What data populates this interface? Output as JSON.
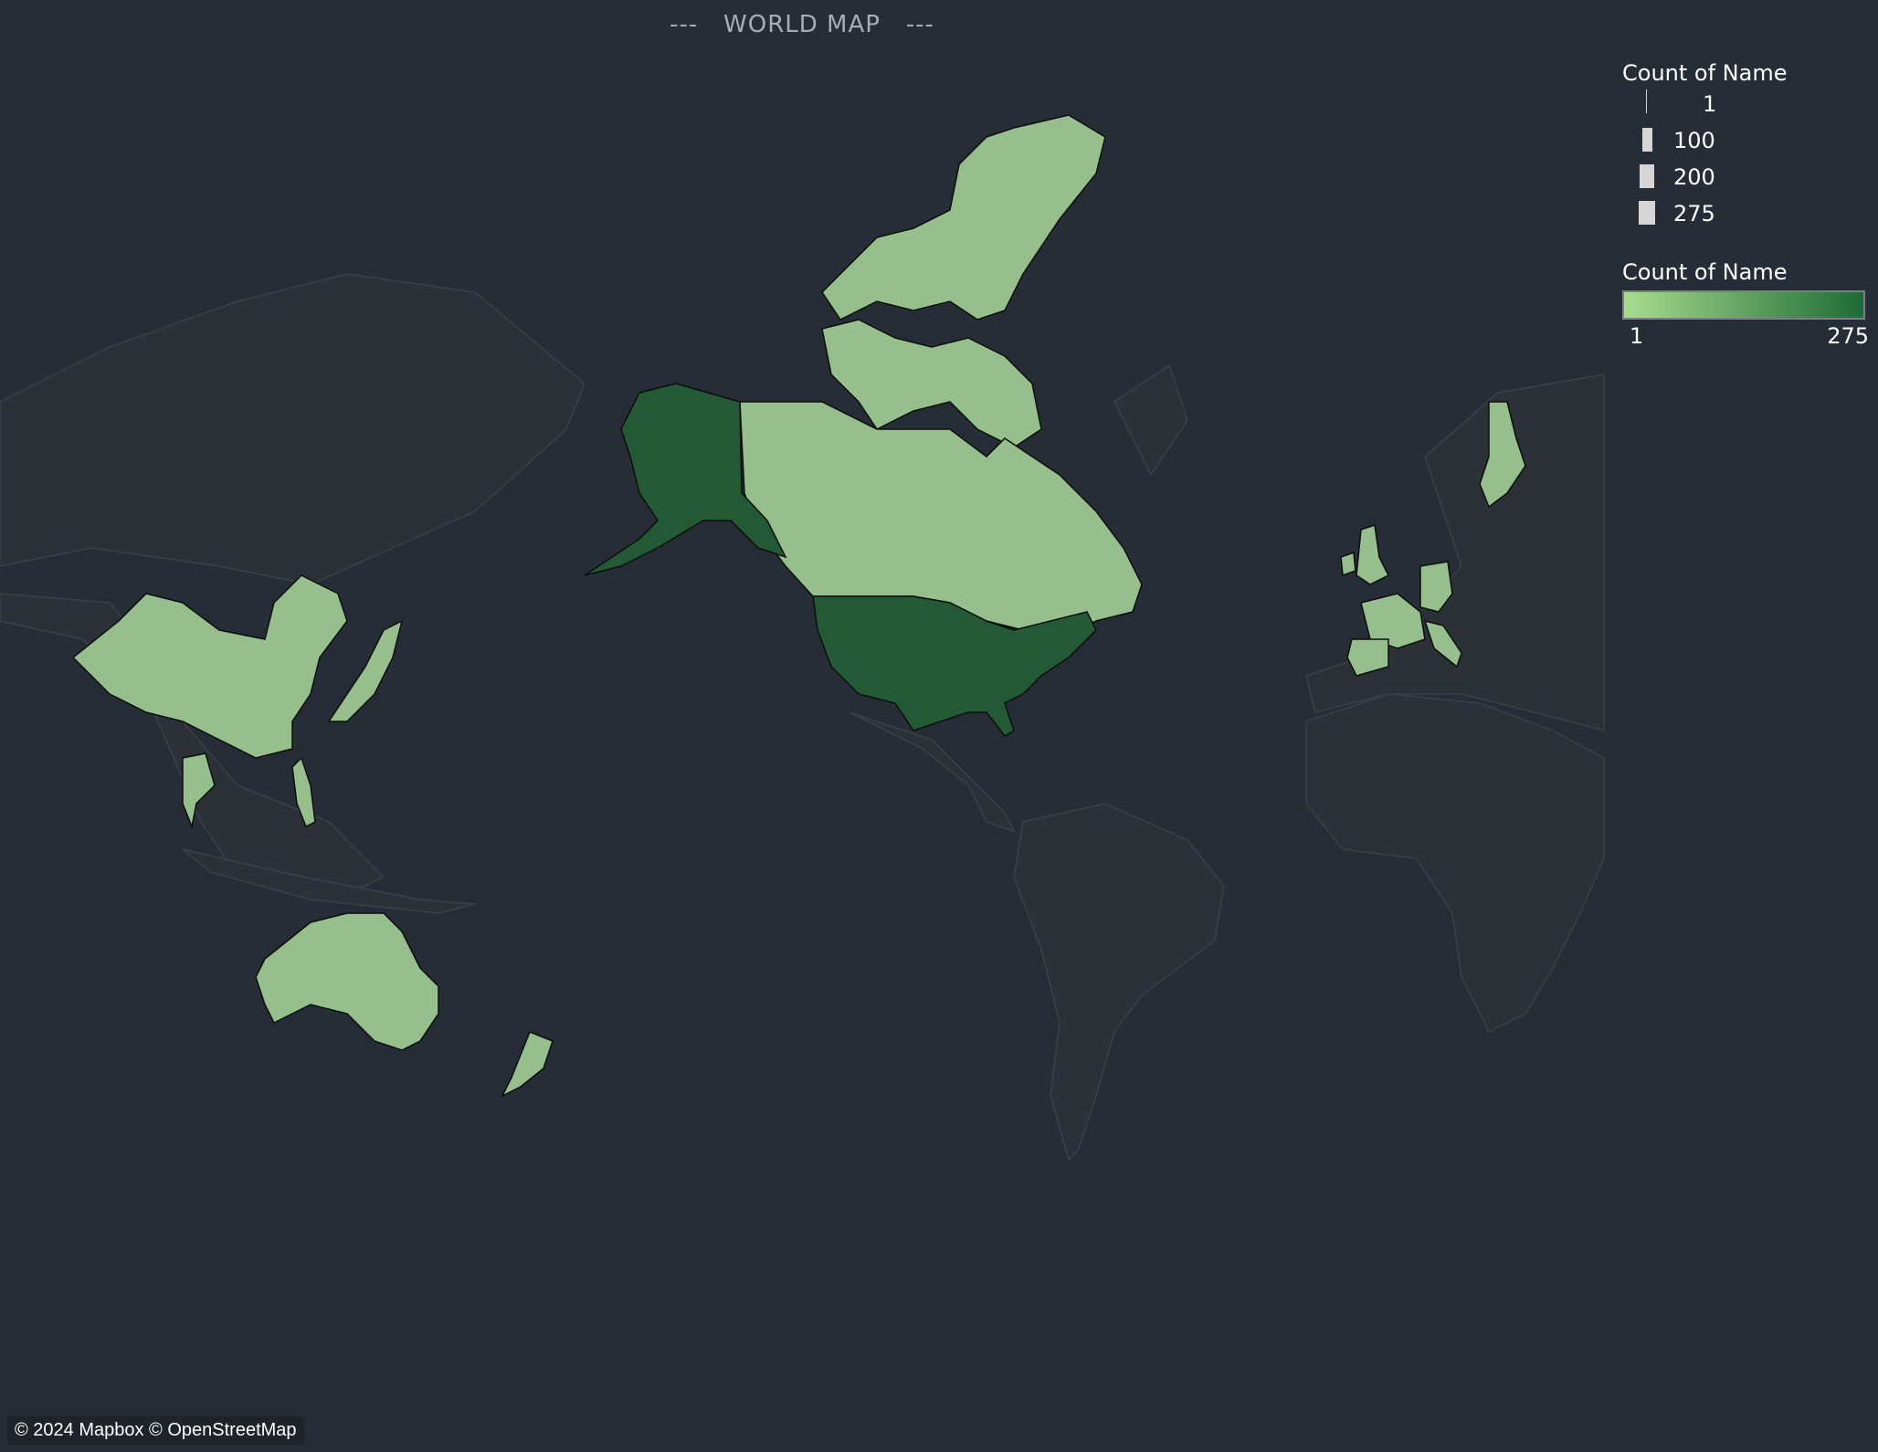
{
  "title": "WORLD MAP",
  "title_dashes": "---",
  "legend": {
    "size_title": "Count of Name",
    "size_items": [
      {
        "label": "1",
        "value": 1
      },
      {
        "label": "100",
        "value": 100
      },
      {
        "label": "200",
        "value": 200
      },
      {
        "label": "275",
        "value": 275
      }
    ],
    "color_title": "Count of Name",
    "color_min_label": "1",
    "color_max_label": "275",
    "gradient_start": "#a8dc8f",
    "gradient_end": "#1e6b36"
  },
  "colors": {
    "background": "#272d36",
    "land_base": "#2c3138",
    "border": "#3b4149",
    "low_fill": "#96bf8d",
    "high_fill": "#235935",
    "outline": "#0b0f0b"
  },
  "regions": [
    {
      "name": "United States",
      "count": 275
    },
    {
      "name": "Alaska",
      "count": 275
    },
    {
      "name": "Canada",
      "count": 1
    },
    {
      "name": "China",
      "count": 1
    },
    {
      "name": "Japan",
      "count": 1
    },
    {
      "name": "Philippines",
      "count": 1
    },
    {
      "name": "Thailand",
      "count": 1
    },
    {
      "name": "Australia",
      "count": 1
    },
    {
      "name": "New Zealand",
      "count": 1
    },
    {
      "name": "Finland",
      "count": 1
    },
    {
      "name": "United Kingdom",
      "count": 1
    },
    {
      "name": "Ireland",
      "count": 1
    },
    {
      "name": "Germany",
      "count": 1
    },
    {
      "name": "France",
      "count": 1
    },
    {
      "name": "Spain",
      "count": 1
    },
    {
      "name": "Italy",
      "count": 1
    }
  ],
  "attribution": "© 2024 Mapbox © OpenStreetMap"
}
